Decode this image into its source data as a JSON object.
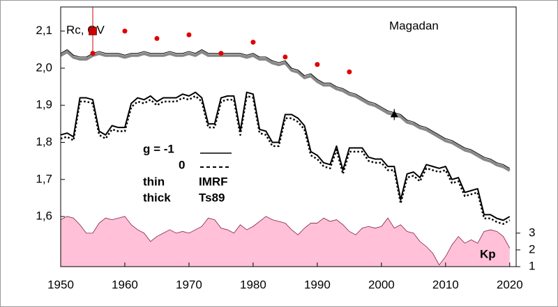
{
  "chart_data": {
    "type": "line",
    "x": [
      1950,
      1951,
      1952,
      1953,
      1954,
      1955,
      1956,
      1957,
      1958,
      1959,
      1960,
      1961,
      1962,
      1963,
      1964,
      1965,
      1966,
      1967,
      1968,
      1969,
      1970,
      1971,
      1972,
      1973,
      1974,
      1975,
      1976,
      1977,
      1978,
      1979,
      1980,
      1981,
      1982,
      1983,
      1984,
      1985,
      1986,
      1987,
      1988,
      1989,
      1990,
      1991,
      1992,
      1993,
      1994,
      1995,
      1996,
      1997,
      1998,
      1999,
      2000,
      2001,
      2002,
      2003,
      2004,
      2005,
      2006,
      2007,
      2008,
      2009,
      2010,
      2011,
      2012,
      2013,
      2014,
      2015,
      2016,
      2017,
      2018,
      2019,
      2020
    ],
    "series": [
      {
        "color": "#888888",
        "width": 4,
        "style": "solid",
        "values": [
          2.034,
          2.044,
          2.029,
          2.024,
          2.024,
          2.034,
          2.039,
          2.034,
          2.034,
          2.034,
          2.029,
          2.034,
          2.034,
          2.039,
          2.034,
          2.034,
          2.034,
          2.039,
          2.034,
          2.034,
          2.039,
          2.034,
          2.044,
          2.034,
          2.034,
          2.034,
          2.034,
          2.034,
          2.034,
          2.029,
          2.034,
          2.024,
          2.024,
          2.014,
          2.009,
          2.014,
          1.994,
          1.989,
          1.974,
          1.979,
          1.964,
          1.954,
          1.954,
          1.944,
          1.939,
          1.929,
          1.924,
          1.914,
          1.904,
          1.899,
          1.889,
          1.879,
          1.874,
          1.869,
          1.854,
          1.849,
          1.839,
          1.834,
          1.824,
          1.814,
          1.804,
          1.799,
          1.789,
          1.779,
          1.774,
          1.764,
          1.754,
          1.749,
          1.739,
          1.734,
          1.724
        ]
      },
      {
        "color": "#000000",
        "width": 1,
        "style": "solid",
        "values": [
          2.04,
          2.05,
          2.035,
          2.03,
          2.03,
          2.04,
          2.045,
          2.04,
          2.04,
          2.04,
          2.035,
          2.04,
          2.04,
          2.045,
          2.04,
          2.04,
          2.04,
          2.045,
          2.04,
          2.04,
          2.045,
          2.04,
          2.05,
          2.04,
          2.04,
          2.04,
          2.04,
          2.04,
          2.04,
          2.035,
          2.04,
          2.03,
          2.03,
          2.02,
          2.015,
          2.02,
          2.0,
          1.995,
          1.98,
          1.985,
          1.97,
          1.96,
          1.96,
          1.95,
          1.945,
          1.935,
          1.93,
          1.92,
          1.91,
          1.905,
          1.895,
          1.885,
          1.88,
          1.875,
          1.86,
          1.855,
          1.845,
          1.84,
          1.83,
          1.82,
          1.81,
          1.805,
          1.795,
          1.785,
          1.78,
          1.77,
          1.76,
          1.755,
          1.745,
          1.74,
          1.73
        ]
      },
      {
        "color": "#000000",
        "width": 2,
        "style": "solid",
        "values": [
          1.82,
          1.825,
          1.815,
          1.92,
          1.92,
          1.915,
          1.83,
          1.82,
          1.845,
          1.84,
          1.84,
          1.905,
          1.92,
          1.915,
          1.925,
          1.91,
          1.92,
          1.92,
          1.92,
          1.93,
          1.925,
          1.935,
          1.92,
          1.85,
          1.85,
          1.92,
          1.925,
          1.925,
          1.83,
          1.935,
          1.93,
          1.835,
          1.83,
          1.8,
          1.8,
          1.875,
          1.875,
          1.865,
          1.845,
          1.775,
          1.765,
          1.745,
          1.74,
          1.79,
          1.725,
          1.785,
          1.785,
          1.785,
          1.76,
          1.755,
          1.755,
          1.735,
          1.735,
          1.645,
          1.715,
          1.72,
          1.705,
          1.74,
          1.735,
          1.73,
          1.735,
          1.7,
          1.705,
          1.665,
          1.67,
          1.675,
          1.605,
          1.605,
          1.595,
          1.59,
          1.6
        ]
      },
      {
        "color": "#000000",
        "width": 2.5,
        "style": "dotted",
        "values": [
          1.81,
          1.815,
          1.805,
          1.91,
          1.91,
          1.905,
          1.82,
          1.81,
          1.835,
          1.83,
          1.83,
          1.895,
          1.91,
          1.905,
          1.915,
          1.9,
          1.91,
          1.91,
          1.91,
          1.92,
          1.915,
          1.925,
          1.91,
          1.84,
          1.84,
          1.91,
          1.915,
          1.915,
          1.82,
          1.925,
          1.92,
          1.825,
          1.82,
          1.79,
          1.79,
          1.865,
          1.865,
          1.855,
          1.835,
          1.765,
          1.755,
          1.735,
          1.73,
          1.78,
          1.715,
          1.775,
          1.775,
          1.775,
          1.75,
          1.745,
          1.745,
          1.725,
          1.725,
          1.635,
          1.705,
          1.71,
          1.695,
          1.73,
          1.725,
          1.72,
          1.725,
          1.69,
          1.695,
          1.655,
          1.66,
          1.665,
          1.595,
          1.595,
          1.585,
          1.58,
          1.59
        ]
      },
      {
        "color": "#ffc0d8",
        "axis": "y2",
        "style": "area",
        "values": [
          3.8,
          4.0,
          3.9,
          3.5,
          3.0,
          3.0,
          3.6,
          3.9,
          3.8,
          3.9,
          4.0,
          3.5,
          3.2,
          3.0,
          2.5,
          2.8,
          3.0,
          3.2,
          3.0,
          3.1,
          3.0,
          3.2,
          3.4,
          3.9,
          3.8,
          3.3,
          3.2,
          3.0,
          3.5,
          3.2,
          3.4,
          3.7,
          4.0,
          3.8,
          3.7,
          3.6,
          3.2,
          2.9,
          3.3,
          3.6,
          3.6,
          3.9,
          3.7,
          3.8,
          3.5,
          3.1,
          2.9,
          3.3,
          3.4,
          3.3,
          3.4,
          3.9,
          3.3,
          3.5,
          3.1,
          3.0,
          2.5,
          2.2,
          1.8,
          1.1,
          1.6,
          2.3,
          2.8,
          2.4,
          2.6,
          2.4,
          3.1,
          3.2,
          3.1,
          2.8,
          2.1
        ]
      }
    ],
    "points": [
      {
        "marker": "circle",
        "color": "#e00000",
        "x": [
          1955,
          1960,
          1965,
          1970,
          1975,
          1980,
          1985,
          1990,
          1995
        ],
        "y": [
          2.04,
          2.1,
          2.08,
          2.09,
          2.04,
          2.07,
          2.03,
          2.01,
          1.99
        ]
      },
      {
        "marker": "square",
        "color": "#cc0000",
        "x": [
          1955
        ],
        "y": [
          2.1
        ]
      },
      {
        "marker": "triangle",
        "color": "#000000",
        "x": [
          2002
        ],
        "y": [
          1.875
        ],
        "error": [
          0.015
        ]
      }
    ],
    "xlim": [
      1950,
      2021
    ],
    "xticks": [
      1950,
      1960,
      1970,
      1980,
      1990,
      2000,
      2010,
      2020
    ],
    "ylim": [
      1.465,
      2.165
    ],
    "yticks": [
      {
        "value": 1.6,
        "label": "1,6"
      },
      {
        "value": 1.7,
        "label": "1,7"
      },
      {
        "value": 1.8,
        "label": "1,8"
      },
      {
        "value": 1.9,
        "label": "1,9"
      },
      {
        "value": 2.0,
        "label": "2,0"
      },
      {
        "value": 2.1,
        "label": "2,1"
      }
    ],
    "y2lim": [
      1,
      16.5
    ],
    "y2ticks": [
      1,
      2,
      3
    ],
    "ylabel": "Rc, GV",
    "station": "Magadan",
    "y2label": "Kp",
    "legend": {
      "g_label": "g  = -1",
      "g0_label": "0",
      "thin": "thin",
      "thick": "thick",
      "thin_model": "IMRF",
      "thick_model": "Ts89"
    }
  }
}
